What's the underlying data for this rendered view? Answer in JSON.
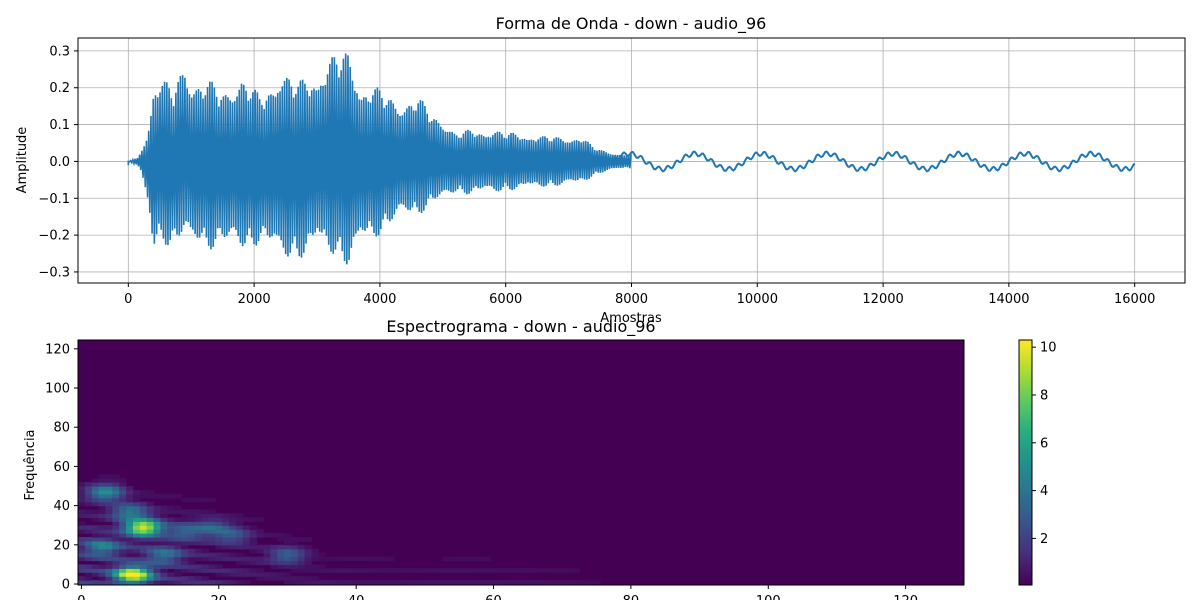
{
  "chart_data": [
    {
      "type": "line",
      "title": "Forma de Onda - down - audio_96",
      "xlabel": "Amostras",
      "ylabel": "Amplitude",
      "xlim": [
        -800,
        16800
      ],
      "ylim": [
        -0.33,
        0.335
      ],
      "grid": true,
      "xticks": [
        0,
        2000,
        4000,
        6000,
        8000,
        10000,
        12000,
        14000,
        16000
      ],
      "xtick_labels": [
        "0",
        "2000",
        "4000",
        "6000",
        "8000",
        "10000",
        "12000",
        "14000",
        "16000"
      ],
      "yticks": [
        -0.3,
        -0.2,
        -0.1,
        0.0,
        0.1,
        0.2,
        0.3
      ],
      "ytick_labels": [
        "−0.3",
        "−0.2",
        "−0.1",
        "0.0",
        "0.1",
        "0.2",
        "0.3"
      ],
      "color": "#1f77b4",
      "envelope": {
        "x": [
          0,
          150,
          200,
          300,
          400,
          500,
          700,
          900,
          1000,
          1300,
          1500,
          1800,
          2100,
          2400,
          2700,
          3000,
          3300,
          3500,
          3700,
          4000,
          4300,
          4600,
          4800,
          5000,
          5200,
          5500,
          5800,
          6000,
          6300,
          6600,
          6900,
          7200,
          7400,
          7600,
          7800,
          8000
        ],
        "upper": [
          0.0,
          0.01,
          0.03,
          0.08,
          0.22,
          0.24,
          0.2,
          0.28,
          0.24,
          0.22,
          0.2,
          0.24,
          0.18,
          0.26,
          0.22,
          0.26,
          0.3,
          0.31,
          0.22,
          0.2,
          0.17,
          0.18,
          0.14,
          0.12,
          0.08,
          0.09,
          0.09,
          0.08,
          0.08,
          0.07,
          0.07,
          0.07,
          0.04,
          0.03,
          0.02,
          0.02
        ],
        "lower": [
          0.0,
          -0.01,
          -0.03,
          -0.12,
          -0.29,
          -0.22,
          -0.24,
          -0.2,
          -0.25,
          -0.24,
          -0.23,
          -0.26,
          -0.22,
          -0.28,
          -0.27,
          -0.25,
          -0.26,
          -0.3,
          -0.24,
          -0.2,
          -0.16,
          -0.15,
          -0.12,
          -0.11,
          -0.09,
          -0.09,
          -0.09,
          -0.08,
          -0.08,
          -0.07,
          -0.07,
          -0.06,
          -0.04,
          -0.03,
          -0.02,
          -0.02
        ]
      },
      "tail": {
        "start": 7700,
        "end": 16000,
        "period": 1050,
        "amplitude": 0.021
      }
    },
    {
      "type": "heatmap",
      "title": "Espectrograma - down - audio_96",
      "xlabel": "",
      "ylabel": "Frequência",
      "xlim": [
        -0.5,
        128.5
      ],
      "ylim": [
        -0.5,
        124.5
      ],
      "xticks": [
        0,
        20,
        40,
        60,
        80,
        100,
        120
      ],
      "xtick_labels": [
        "0",
        "20",
        "40",
        "60",
        "80",
        "100",
        "120"
      ],
      "yticks": [
        0,
        20,
        40,
        60,
        80,
        100,
        120
      ],
      "ytick_labels": [
        "0",
        "20",
        "40",
        "60",
        "80",
        "100",
        "120"
      ],
      "colormap": "viridis",
      "colorbar": {
        "range": [
          0.05,
          10.3
        ],
        "ticks": [
          2,
          4,
          6,
          8,
          10
        ],
        "tick_labels": [
          "2",
          "4",
          "6",
          "8",
          "10"
        ]
      },
      "hotspots": [
        {
          "t": 7.5,
          "f": 4,
          "value": 10.3
        },
        {
          "t": 9,
          "f": 28,
          "value": 9.5
        },
        {
          "t": 3.5,
          "f": 46,
          "value": 5
        },
        {
          "t": 3,
          "f": 18,
          "value": 4
        },
        {
          "t": 7,
          "f": 36,
          "value": 4
        },
        {
          "t": 12,
          "f": 14,
          "value": 3.5
        },
        {
          "t": 15,
          "f": 26,
          "value": 3
        },
        {
          "t": 19,
          "f": 28,
          "value": 2.8
        },
        {
          "t": 22,
          "f": 24,
          "value": 2.6
        },
        {
          "t": 30,
          "f": 14,
          "value": 3
        }
      ]
    }
  ]
}
